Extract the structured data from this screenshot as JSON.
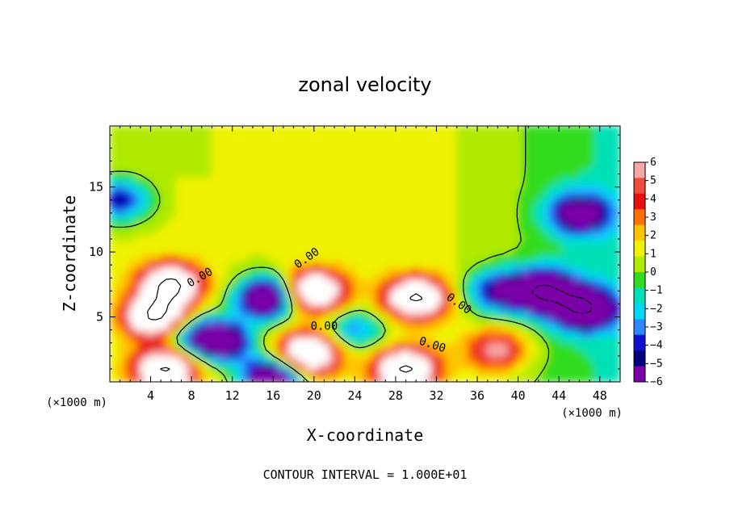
{
  "chart_data": {
    "type": "heatmap",
    "title": "zonal velocity",
    "xlabel": "X-coordinate",
    "ylabel": "Z-coordinate",
    "x_unit_left": "(×1000 m)",
    "x_unit_right": "(×1000 m)",
    "footer": "CONTOUR INTERVAL = 1.000E+01",
    "xlim": [
      0,
      50
    ],
    "ylim": [
      0,
      19.7
    ],
    "x_ticks": [
      4,
      8,
      12,
      16,
      20,
      24,
      28,
      32,
      36,
      40,
      44,
      48
    ],
    "y_ticks": [
      5,
      10,
      15
    ],
    "colorbar": {
      "min": -6,
      "max": 6,
      "ticks": [
        6,
        5,
        4,
        3,
        2,
        1,
        0,
        -1,
        -2,
        -3,
        -4,
        -5,
        -6
      ],
      "colors": [
        "#f7a6a6",
        "#f04a3c",
        "#e80f0f",
        "#ff7000",
        "#ffc400",
        "#eff200",
        "#b0ea00",
        "#30dc1e",
        "#00e0b6",
        "#00d6f6",
        "#2c88ff",
        "#1010d0",
        "#000080",
        "#7a00a8"
      ]
    },
    "contour_labels": [
      "0.00",
      "0.00",
      "0.00",
      "0.00",
      "0.00"
    ],
    "features": [
      {
        "kind": "high",
        "x": 6.0,
        "z": 7.5,
        "value": 7
      },
      {
        "kind": "high",
        "x": 4.5,
        "z": 5.0,
        "value": 7
      },
      {
        "kind": "high",
        "x": 20.0,
        "z": 7.0,
        "value": 7
      },
      {
        "kind": "high",
        "x": 30.0,
        "z": 6.5,
        "value": 7
      },
      {
        "kind": "high",
        "x": 19.5,
        "z": 2.2,
        "value": 7
      },
      {
        "kind": "high",
        "x": 5.5,
        "z": 1.0,
        "value": 7
      },
      {
        "kind": "high",
        "x": 29.0,
        "z": 1.0,
        "value": 7
      },
      {
        "kind": "high",
        "x": 38.0,
        "z": 2.5,
        "value": 4
      },
      {
        "kind": "low",
        "x": 15.5,
        "z": 6.5,
        "value": -7
      },
      {
        "kind": "low",
        "x": 42.5,
        "z": 7.0,
        "value": -7
      },
      {
        "kind": "low",
        "x": 46.5,
        "z": 5.7,
        "value": -7
      },
      {
        "kind": "low",
        "x": 11.0,
        "z": 3.2,
        "value": -6
      },
      {
        "kind": "low",
        "x": 16.0,
        "z": 0.3,
        "value": -7
      },
      {
        "kind": "low",
        "x": 46.0,
        "z": 13.0,
        "value": -5
      },
      {
        "kind": "low",
        "x": 1.0,
        "z": 14.0,
        "value": -4
      },
      {
        "kind": "low",
        "x": 38.0,
        "z": 7.0,
        "value": -4
      },
      {
        "kind": "low",
        "x": 24.0,
        "z": 4.0,
        "value": -3
      },
      {
        "kind": "low",
        "x": 8.0,
        "z": 3.5,
        "value": -3
      }
    ]
  }
}
